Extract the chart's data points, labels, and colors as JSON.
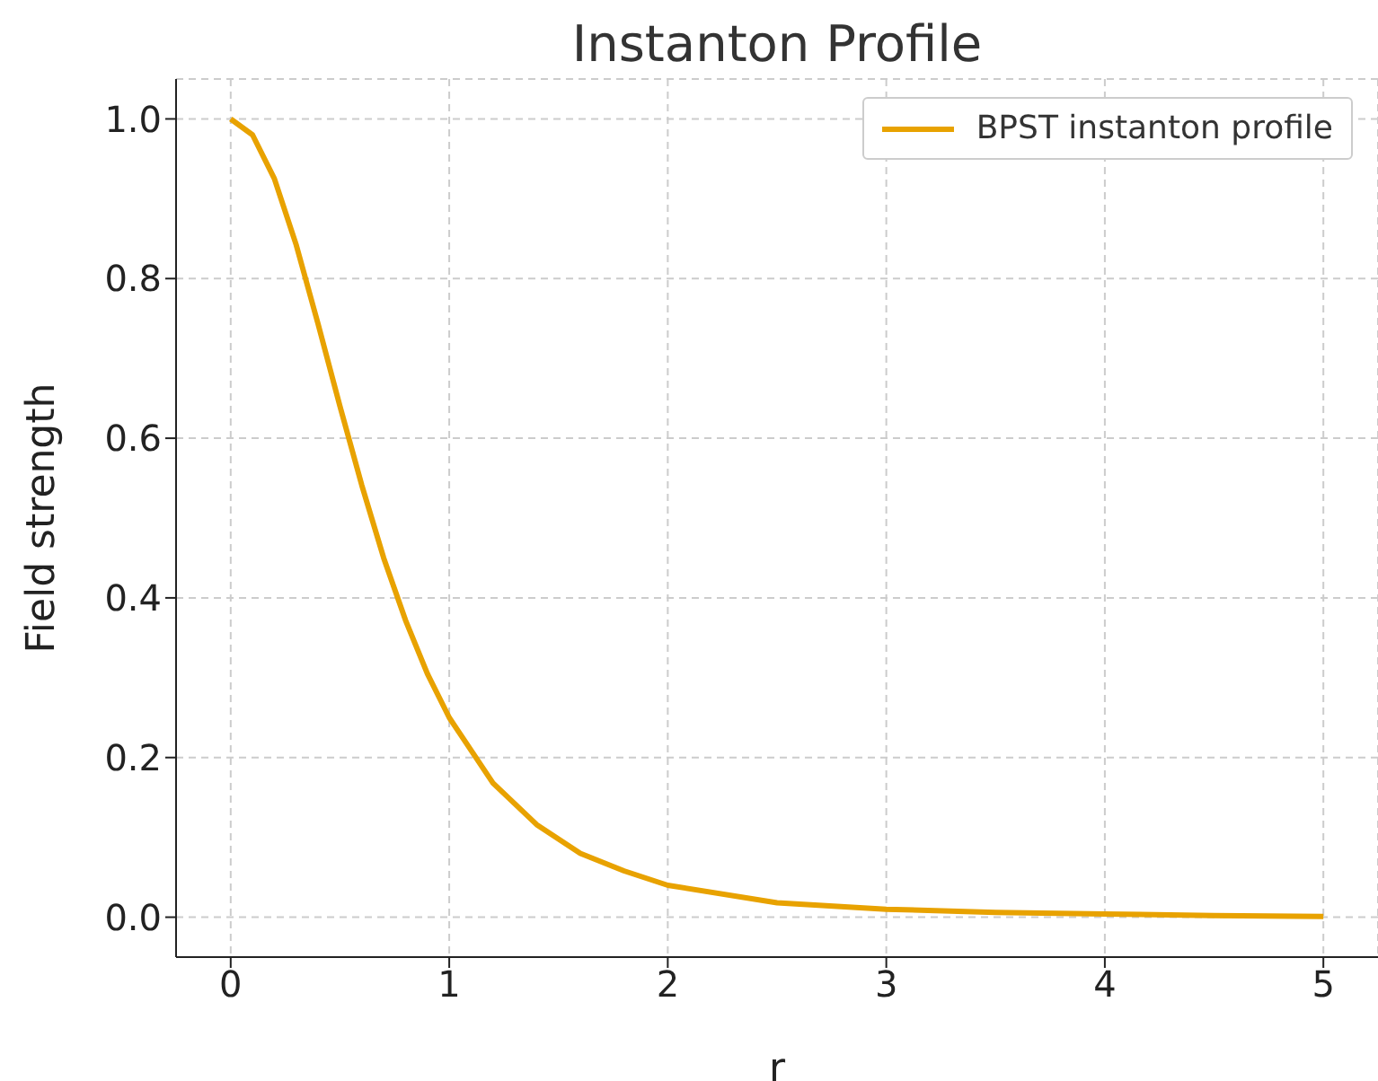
{
  "chart_data": {
    "type": "line",
    "title": "Instanton Profile",
    "xlabel": "r",
    "ylabel": "Field strength",
    "x": [
      0,
      0.1,
      0.2,
      0.3,
      0.4,
      0.5,
      0.6,
      0.7,
      0.8,
      0.9,
      1,
      1.2,
      1.4,
      1.6,
      1.8,
      2,
      2.5,
      3,
      3.5,
      4,
      4.5,
      5
    ],
    "series": [
      {
        "name": "BPST instanton profile",
        "color": "#e8a200",
        "values": [
          1,
          0.98,
          0.925,
          0.842,
          0.743,
          0.64,
          0.541,
          0.45,
          0.372,
          0.305,
          0.25,
          0.168,
          0.116,
          0.08,
          0.058,
          0.04,
          0.018,
          0.01,
          0.006,
          0.004,
          0.002,
          0.001
        ]
      }
    ],
    "xlim": [
      -0.25,
      5.25
    ],
    "xticks": [
      0,
      1,
      2,
      3,
      4,
      5
    ],
    "ylim": [
      -0.05,
      1.05
    ],
    "yticks": [
      {
        "value": 0,
        "label": "0.0"
      },
      {
        "value": 0.2,
        "label": "0.2"
      },
      {
        "value": 0.4,
        "label": "0.4"
      },
      {
        "value": 0.6,
        "label": "0.6"
      },
      {
        "value": 0.8,
        "label": "0.8"
      },
      {
        "value": 1,
        "label": "1.0"
      }
    ],
    "grid": true,
    "legend": "top right",
    "marker": "none",
    "line_style": "solid"
  }
}
